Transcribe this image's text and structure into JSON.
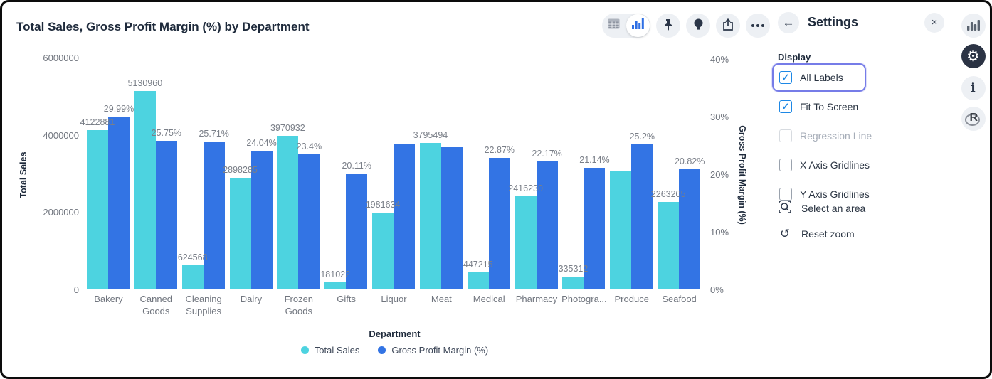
{
  "chart": {
    "title": "Total Sales, Gross Profit Margin (%) by Department",
    "toolbar": {
      "icons": [
        "table-view-icon",
        "chart-view-icon",
        "pin-icon",
        "lightbulb-icon",
        "share-icon",
        "more-ellipsis-icon"
      ],
      "selected_view": "chart"
    }
  },
  "chart_data": {
    "type": "bar",
    "title": "Total Sales, Gross Profit Margin (%) by Department",
    "categories": [
      "Bakery",
      "Canned Goods",
      "Cleaning Supplies",
      "Dairy",
      "Frozen Goods",
      "Gifts",
      "Liquor",
      "Meat",
      "Medical",
      "Pharmacy",
      "Photogra...",
      "Produce",
      "Seafood"
    ],
    "series": [
      {
        "name": "Total Sales",
        "axis": "left",
        "color": "#4DD3E0",
        "values": [
          4122881,
          5130960,
          624568,
          2898285,
          3970932,
          181022,
          1981634,
          3795494,
          447215,
          2416230,
          335312,
          3050000,
          2263205
        ],
        "labels": [
          "4122881",
          "5130960",
          "624568",
          "2898285",
          "3970932",
          "181022",
          "1981634",
          "3795494",
          "447215",
          "2416230",
          "335312",
          null,
          "2263205"
        ]
      },
      {
        "name": "Gross Profit Margin (%)",
        "axis": "right",
        "color": "#3374E4",
        "values": [
          29.99,
          25.75,
          25.71,
          24.04,
          23.4,
          20.11,
          25.3,
          24.7,
          22.87,
          22.17,
          21.14,
          25.2,
          20.82
        ],
        "labels": [
          "29.99%",
          "25.75%",
          "25.71%",
          "24.04%",
          "23.4%",
          "20.11%",
          null,
          null,
          "22.87%",
          "22.17%",
          "21.14%",
          "25.2%",
          "20.82%"
        ]
      }
    ],
    "xlabel": "Department",
    "ylabel_left": "Total Sales",
    "ylabel_right": "Gross Profit Margin (%)",
    "yticks_left": [
      "6000000",
      "4000000",
      "2000000",
      "0"
    ],
    "yticks_right": [
      "40%",
      "30%",
      "20%",
      "10%",
      "0%"
    ],
    "ylim_left": [
      0,
      6000000
    ],
    "ylim_right": [
      0,
      40
    ],
    "grid": false,
    "legend_position": "bottom"
  },
  "settings": {
    "title": "Settings",
    "back_glyph": "←",
    "close_glyph": "×",
    "section_title": "Display",
    "checkboxes": [
      {
        "label": "All Labels",
        "checked": true,
        "disabled": false,
        "focused": true
      },
      {
        "label": "Fit To Screen",
        "checked": true,
        "disabled": false,
        "focused": false
      },
      {
        "label": "Regression Line",
        "checked": false,
        "disabled": true,
        "focused": false
      },
      {
        "label": "X Axis Gridlines",
        "checked": false,
        "disabled": false,
        "focused": false
      },
      {
        "label": "Y Axis Gridlines",
        "checked": false,
        "disabled": false,
        "focused": false
      }
    ],
    "actions": [
      {
        "label": "Select an area",
        "icon": "select-area-icon"
      },
      {
        "label": "Reset zoom",
        "icon": "reset-zoom-icon",
        "glyph": "↺"
      }
    ]
  },
  "right_strip": {
    "icons": [
      "bar-chart-icon",
      "settings-gear-icon",
      "info-icon",
      "r-language-icon"
    ],
    "gear_glyph": "⚙"
  },
  "colors": {
    "series_cyan": "#4DD3E0",
    "series_blue": "#3374E4",
    "checkbox_blue": "#1E88E5",
    "focus_ring": "#767CE8",
    "icon_dark": "#2B3648"
  }
}
